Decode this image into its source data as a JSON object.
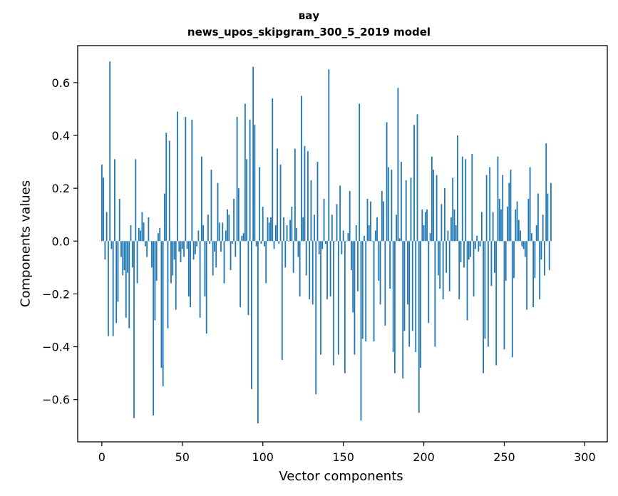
{
  "chart_data": {
    "type": "bar",
    "title": [
      "вау",
      "news_upos_skipgram_300_5_2019 model"
    ],
    "xlabel": "Vector components",
    "ylabel": "Components values",
    "xlim": [
      -15,
      314
    ],
    "ylim": [
      -0.76,
      0.74
    ],
    "xticks": [
      0,
      50,
      100,
      150,
      200,
      250,
      300
    ],
    "yticks": [
      -0.6,
      -0.4,
      -0.2,
      0.0,
      0.2,
      0.4,
      0.6
    ],
    "ytick_labels": [
      "−0.6",
      "−0.4",
      "−0.2",
      "0.0",
      "0.2",
      "0.4",
      "0.6"
    ],
    "bar_color": "#1f77b4",
    "grid": false,
    "values": [
      0.29,
      0.24,
      -0.07,
      0.11,
      -0.36,
      0.68,
      -0.03,
      -0.36,
      0.31,
      -0.31,
      -0.23,
      0.16,
      -0.06,
      -0.13,
      -0.11,
      -0.29,
      -0.12,
      -0.33,
      0.06,
      -0.1,
      -0.67,
      0.31,
      -0.16,
      0.05,
      0.04,
      0.11,
      0.07,
      -0.02,
      -0.06,
      0.09,
      0.0,
      -0.1,
      -0.66,
      -0.3,
      -0.15,
      0.03,
      0.05,
      -0.48,
      -0.55,
      0.18,
      0.41,
      -0.33,
      0.38,
      -0.16,
      -0.13,
      -0.07,
      -0.26,
      0.49,
      -0.04,
      -0.08,
      -0.03,
      -0.06,
      0.47,
      -0.03,
      -0.21,
      -0.25,
      0.46,
      -0.07,
      -0.05,
      -0.02,
      0.04,
      -0.29,
      0.32,
      0.06,
      -0.21,
      -0.35,
      0.1,
      -0.01,
      0.27,
      -0.13,
      -0.04,
      -0.1,
      0.22,
      0.07,
      -0.04,
      0.07,
      -0.16,
      0.04,
      0.12,
      0.1,
      -0.11,
      -0.01,
      0.16,
      -0.06,
      0.47,
      0.2,
      -0.25,
      0.02,
      0.03,
      0.52,
      0.31,
      -0.28,
      0.46,
      -0.56,
      0.66,
      0.44,
      -0.02,
      -0.69,
      0.28,
      -0.01,
      0.13,
      -0.02,
      -0.16,
      0.09,
      0.07,
      0.09,
      0.54,
      -0.03,
      0.06,
      0.35,
      -0.01,
      0.29,
      -0.45,
      0.09,
      -0.1,
      0.06,
      0.0,
      0.08,
      0.13,
      -0.12,
      0.35,
      0.05,
      -0.06,
      -0.21,
      0.55,
      0.09,
      0.36,
      -0.13,
      0.34,
      -0.22,
      0.23,
      -0.24,
      0.1,
      -0.58,
      0.3,
      -0.05,
      -0.43,
      -0.03,
      0.16,
      -0.01,
      -0.22,
      0.65,
      -0.21,
      0.1,
      -0.47,
      0.0,
      0.14,
      -0.43,
      0.21,
      -0.05,
      0.04,
      -0.5,
      0.0,
      0.03,
      0.19,
      -0.11,
      -0.27,
      -0.43,
      0.06,
      -0.19,
      0.52,
      -0.68,
      -0.37,
      0.02,
      -0.38,
      0.16,
      0.06,
      0.15,
      0.0,
      -0.38,
      0.04,
      0.09,
      -0.15,
      -0.24,
      0.19,
      0.15,
      -0.32,
      0.45,
      0.28,
      -0.18,
      0.27,
      -0.42,
      -0.5,
      0.1,
      0.58,
      0.01,
      0.3,
      -0.52,
      -0.34,
      0.23,
      -0.24,
      -0.4,
      0.24,
      -0.34,
      0.44,
      -0.42,
      0.48,
      -0.65,
      -0.48,
      0.12,
      0.06,
      0.11,
      0.12,
      -0.31,
      0.03,
      0.32,
      0.27,
      -0.4,
      0.25,
      -0.13,
      -0.18,
      0.14,
      -0.22,
      0.2,
      -0.12,
      0.04,
      -0.19,
      0.09,
      0.24,
      0.12,
      0.06,
      0.4,
      -0.22,
      -0.08,
      0.32,
      -0.1,
      0.31,
      -0.3,
      -0.07,
      -0.06,
      0.33,
      -0.21,
      -0.03,
      0.02,
      -0.04,
      -0.02,
      0.11,
      -0.5,
      -0.37,
      0.25,
      -0.4,
      0.28,
      -0.17,
      0.11,
      -0.12,
      -0.47,
      0.32,
      0.16,
      0.12,
      0.25,
      -0.41,
      -0.15,
      0.13,
      0.22,
      0.27,
      -0.44,
      -0.14,
      0.12,
      0.15,
      0.08,
      0.04,
      -0.02,
      -0.03,
      -0.06,
      -0.26,
      0.16,
      0.28,
      0.03,
      -0.25,
      -0.14,
      0.06,
      0.18,
      -0.22,
      -0.07,
      0.1,
      -0.13,
      0.37,
      0.18,
      -0.11,
      0.22
    ]
  }
}
